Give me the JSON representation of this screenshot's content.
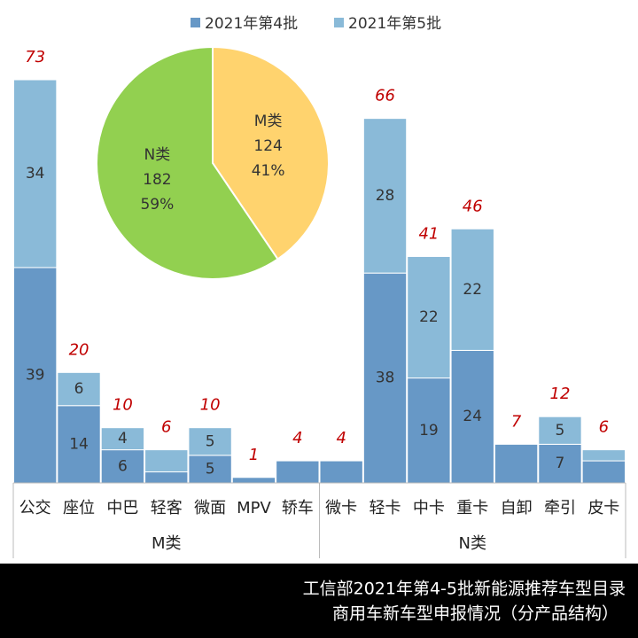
{
  "chart_data": {
    "type": "bar",
    "stacked": true,
    "groups": [
      {
        "name": "M类",
        "categories": [
          "公交",
          "座位",
          "中巴",
          "轻客",
          "微面",
          "MPV",
          "轿车"
        ]
      },
      {
        "name": "N类",
        "categories": [
          "微卡",
          "轻卡",
          "中卡",
          "重卡",
          "自卸",
          "牵引",
          "皮卡"
        ]
      }
    ],
    "series": [
      {
        "name": "2021年第4批",
        "color": "#6798c6",
        "values": [
          39,
          14,
          6,
          2,
          5,
          1,
          4,
          4,
          38,
          19,
          24,
          7,
          7,
          4
        ],
        "value_labels": [
          "39",
          "14",
          "6",
          null,
          "5",
          null,
          null,
          null,
          "38",
          "19",
          "24",
          null,
          "7",
          null
        ]
      },
      {
        "name": "2021年第5批",
        "color": "#8abad8",
        "values": [
          34,
          6,
          4,
          4,
          5,
          0,
          0,
          0,
          28,
          22,
          22,
          0,
          5,
          2
        ],
        "value_labels": [
          "34",
          "6",
          "4",
          null,
          "5",
          null,
          null,
          null,
          "28",
          "22",
          "22",
          null,
          "5",
          null
        ]
      }
    ],
    "totals": [
      73,
      20,
      10,
      6,
      10,
      1,
      4,
      4,
      66,
      41,
      46,
      7,
      12,
      6
    ],
    "ylim": [
      0,
      73
    ],
    "inset": {
      "type": "pie",
      "labels": [
        "M类",
        "N类"
      ],
      "values": [
        124,
        182
      ],
      "value_labels": [
        "41%",
        "59%"
      ],
      "colors": [
        "#ffd36e",
        "#92d050"
      ]
    },
    "footer": [
      "工信部2021年第4-5批新能源推荐车型目录",
      "商用车新车型申报情况（分产品结构）"
    ]
  }
}
